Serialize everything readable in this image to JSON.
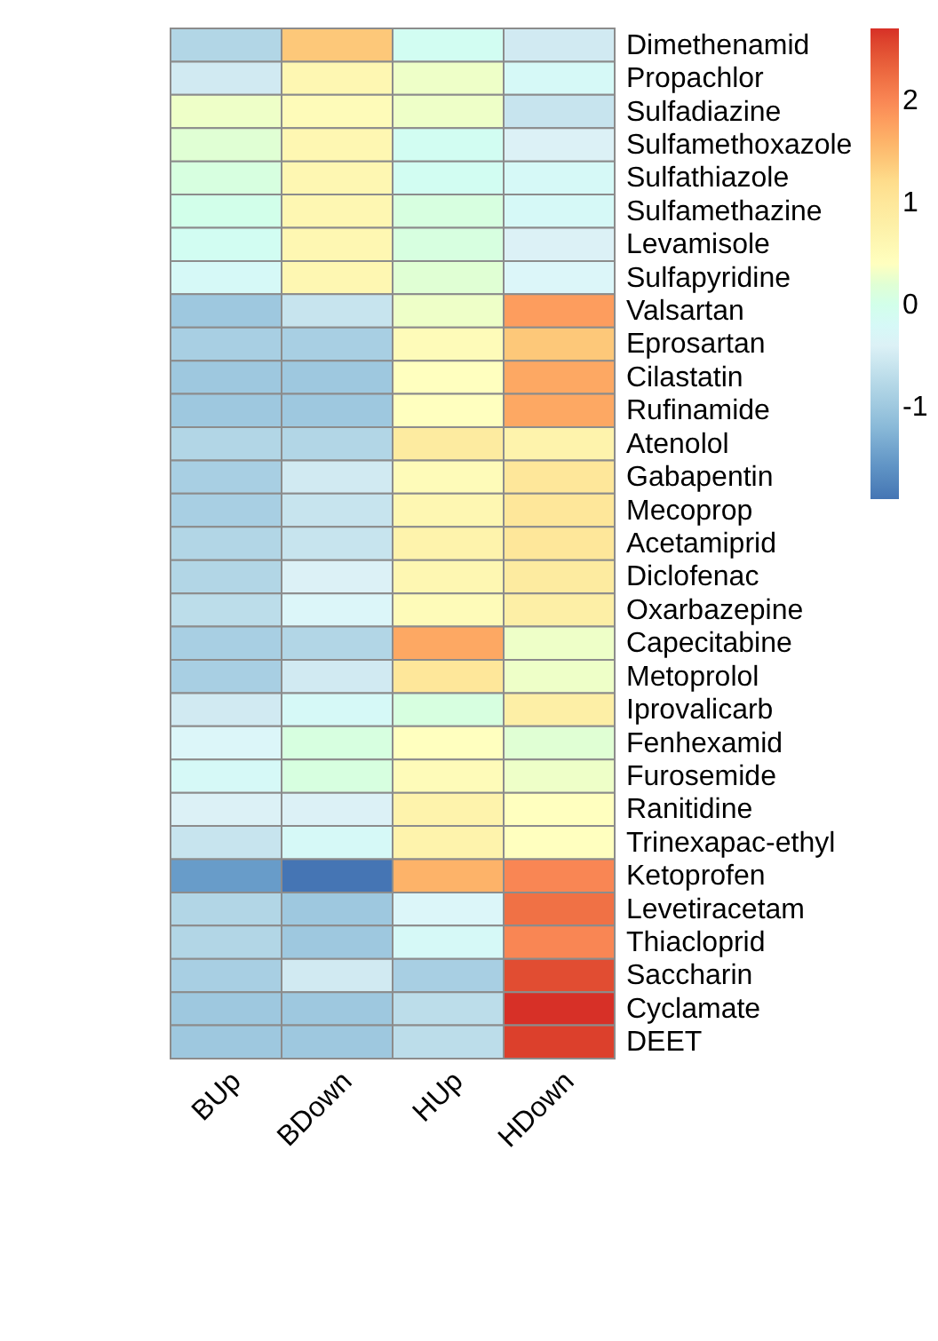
{
  "chart_data": {
    "type": "heatmap",
    "categories": [
      "BUp",
      "BDown",
      "HUp",
      "HDown"
    ],
    "y_categories": [
      "Dimethenamid",
      "Propachlor",
      "Sulfadiazine",
      "Sulfamethoxazole",
      "Sulfathiazole",
      "Sulfamethazine",
      "Levamisole",
      "Sulfapyridine",
      "Valsartan",
      "Eprosartan",
      "Cilastatin",
      "Rufinamide",
      "Atenolol",
      "Gabapentin",
      "Mecoprop",
      "Acetamiprid",
      "Diclofenac",
      "Oxarbazepine",
      "Capecitabine",
      "Metoprolol",
      "Iprovalicarb",
      "Fenhexamid",
      "Furosemide",
      "Ranitidine",
      "Trinexapac-ethyl",
      "Ketoprofen",
      "Levetiracetam",
      "Thiacloprid",
      "Saccharin",
      "Cyclamate",
      "DEET"
    ],
    "cells": [
      [
        -0.8,
        1.4,
        -0.1,
        -0.5
      ],
      [
        -0.5,
        0.6,
        0.3,
        -0.2
      ],
      [
        0.3,
        0.5,
        0.3,
        -0.6
      ],
      [
        0.2,
        0.6,
        -0.1,
        -0.4
      ],
      [
        0.1,
        0.6,
        -0.1,
        -0.2
      ],
      [
        0.0,
        0.6,
        0.1,
        -0.2
      ],
      [
        -0.1,
        0.6,
        0.1,
        -0.4
      ],
      [
        -0.2,
        0.6,
        0.2,
        -0.3
      ],
      [
        -1.0,
        -0.6,
        0.3,
        1.8
      ],
      [
        -0.9,
        -0.9,
        0.5,
        1.4
      ],
      [
        -1.0,
        -1.0,
        0.4,
        1.7
      ],
      [
        -1.0,
        -1.0,
        0.4,
        1.7
      ],
      [
        -0.8,
        -0.8,
        0.9,
        0.7
      ],
      [
        -0.9,
        -0.5,
        0.5,
        1.0
      ],
      [
        -0.9,
        -0.6,
        0.6,
        1.0
      ],
      [
        -0.8,
        -0.6,
        0.7,
        1.0
      ],
      [
        -0.8,
        -0.4,
        0.6,
        0.9
      ],
      [
        -0.7,
        -0.3,
        0.5,
        0.8
      ],
      [
        -0.9,
        -0.8,
        1.7,
        0.3
      ],
      [
        -0.9,
        -0.5,
        1.0,
        0.3
      ],
      [
        -0.5,
        -0.2,
        0.1,
        0.8
      ],
      [
        -0.3,
        0.1,
        0.4,
        0.2
      ],
      [
        -0.2,
        0.1,
        0.5,
        0.3
      ],
      [
        -0.4,
        -0.4,
        0.7,
        0.4
      ],
      [
        -0.6,
        -0.2,
        0.7,
        0.4
      ],
      [
        -1.5,
        -1.9,
        1.6,
        2.0
      ],
      [
        -0.8,
        -1.0,
        -0.3,
        2.2
      ],
      [
        -0.8,
        -1.0,
        -0.2,
        2.0
      ],
      [
        -0.9,
        -0.5,
        -0.9,
        2.5
      ],
      [
        -1.0,
        -1.0,
        -0.7,
        2.7
      ],
      [
        -1.0,
        -1.0,
        -0.7,
        2.6
      ]
    ],
    "clim": [
      -1.9,
      2.7
    ],
    "cticks": [
      -1,
      0,
      1,
      2
    ]
  }
}
